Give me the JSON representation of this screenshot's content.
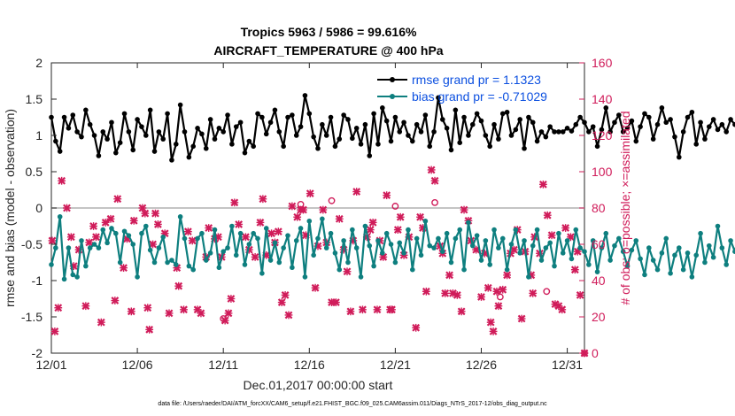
{
  "chart_data": {
    "type": "line",
    "title_line1": "Tropics 5963 / 5986 = 99.616%",
    "title_line2": "AIRCRAFT_TEMPERATURE @ 400 hPa",
    "xlabel": "Dec.01,2017 00:00:00 start",
    "ylabel_left": "rmse and bias (model - observation)",
    "ylabel_right": "# of obs: o=possible; ×=assimilated",
    "footer": "data file: /Users/raeder/DAI/ATM_forcXX/CAM6_setup/f.e21.FHIST_BGC.f09_025.CAM6assim.011/Diags_NTrS_2017-12/obs_diag_output.nc",
    "xlim": [
      0,
      31
    ],
    "ylim_left": [
      -2,
      2
    ],
    "ylim_right": [
      0,
      160
    ],
    "x_tick_labels": [
      "12/01",
      "12/06",
      "12/11",
      "12/16",
      "12/21",
      "12/26",
      "12/31"
    ],
    "x_tick_values": [
      0,
      5,
      10,
      15,
      20,
      25,
      30
    ],
    "y_left_ticks": [
      "2",
      "1.5",
      "1",
      "0.5",
      "0",
      "-0.5",
      "-1",
      "-1.5",
      "-2"
    ],
    "y_right_ticks": [
      "160",
      "140",
      "120",
      "100",
      "80",
      "60",
      "40",
      "20",
      "0"
    ],
    "colors": {
      "rmse": "#000000",
      "bias": "#0e7f7f",
      "obs": "#d01c5a",
      "legend_text": "#0b4fe0",
      "zero_line": "#b0b0b0"
    },
    "legend": [
      {
        "name": "rmse grand pr = 1.1323",
        "series": "rmse"
      },
      {
        "name": "bias grand pr = -0.71029",
        "series": "bias"
      }
    ],
    "series": [
      {
        "name": "rmse",
        "step": 0.25,
        "values": [
          1.25,
          0.92,
          0.78,
          1.25,
          1.1,
          1.28,
          1.05,
          0.98,
          1.35,
          1.15,
          1.0,
          0.72,
          1.05,
          0.95,
          1.18,
          0.76,
          0.9,
          1.3,
          1.05,
          0.8,
          1.22,
          1.12,
          1.0,
          1.35,
          0.78,
          1.05,
          0.95,
          1.3,
          0.66,
          0.88,
          1.42,
          1.05,
          0.7,
          0.85,
          1.1,
          1.02,
          0.82,
          1.22,
          0.95,
          1.1,
          1.05,
          1.28,
          0.88,
          1.12,
          1.18,
          0.76,
          0.92,
          0.85,
          1.3,
          1.25,
          1.02,
          1.18,
          1.35,
          1.05,
          0.85,
          1.25,
          1.28,
          1.0,
          1.12,
          1.55,
          1.3,
          0.98,
          0.82,
          1.15,
          1.0,
          1.25,
          0.85,
          0.95,
          1.28,
          1.22,
          0.96,
          1.1,
          0.88,
          1.15,
          0.72,
          1.3,
          0.88,
          1.38,
          1.2,
          0.92,
          1.25,
          1.05,
          1.18,
          1.0,
          0.92,
          1.15,
          1.05,
          1.28,
          0.85,
          1.05,
          1.52,
          1.22,
          1.1,
          0.8,
          1.35,
          0.9,
          1.25,
          1.0,
          1.15,
          1.3,
          1.2,
          1.0,
          0.85,
          1.15,
          0.95,
          1.3,
          1.32,
          1.0,
          1.08,
          1.22,
          0.82,
          1.25,
          1.18,
          0.92,
          1.05,
          0.98,
          1.12,
          1.05,
          1.05,
          1.05,
          1.1,
          1.06,
          1.15,
          1.25,
          1.18,
          1.05,
          1.12,
          0.85,
          1.08,
          1.38,
          1.05,
          1.18,
          1.28,
          1.05,
          1.1,
          1.2,
          0.92,
          1.12,
          1.3,
          1.25,
          0.95,
          1.15,
          1.38,
          1.18,
          1.22,
          0.98,
          0.7,
          1.05,
          1.25,
          1.32,
          0.88,
          1.18,
          0.95,
          1.12,
          1.22,
          1.08,
          1.15,
          1.05,
          1.22,
          1.15,
          1.05,
          1.28,
          1.2,
          1.12,
          1.3,
          0.98,
          1.18,
          0.92,
          0.82,
          1.25,
          1.05,
          1.35,
          1.05,
          1.22,
          0.92,
          1.38,
          0.85,
          1.45,
          1.25,
          1.18,
          1.05,
          1.15,
          1.22,
          1.25
        ]
      },
      {
        "name": "bias",
        "step": 0.25,
        "values": [
          -0.78,
          -0.55,
          -0.12,
          -0.98,
          -0.55,
          -0.92,
          -0.95,
          -0.45,
          -0.8,
          -0.55,
          -0.5,
          -0.55,
          -0.3,
          -0.48,
          -0.28,
          -0.35,
          -0.75,
          -0.32,
          -0.38,
          -0.5,
          -0.95,
          -0.35,
          -0.25,
          -0.58,
          -0.75,
          -0.55,
          -0.4,
          -0.75,
          -0.72,
          -0.78,
          -0.12,
          -0.42,
          -0.8,
          -0.85,
          -0.42,
          -0.35,
          -0.72,
          -0.62,
          -0.3,
          -0.82,
          -0.6,
          -0.55,
          -0.25,
          -0.65,
          -0.35,
          -0.78,
          -0.5,
          -0.35,
          -0.42,
          -0.9,
          -0.28,
          -0.72,
          -0.48,
          -0.75,
          -0.55,
          -0.38,
          -0.82,
          -0.45,
          -0.28,
          -0.95,
          -0.18,
          -0.65,
          -0.42,
          -0.15,
          -0.55,
          -0.35,
          -0.62,
          -0.85,
          -0.45,
          -0.75,
          -0.3,
          -0.55,
          -0.95,
          -0.25,
          -0.52,
          -0.8,
          -0.45,
          -0.62,
          -0.35,
          -0.5,
          -0.75,
          -0.48,
          -0.62,
          -0.3,
          -0.85,
          -0.42,
          -0.65,
          -0.18,
          -0.52,
          -0.55,
          -0.42,
          -0.6,
          -0.35,
          -0.75,
          -0.42,
          -0.3,
          -0.85,
          -0.2,
          -0.52,
          -0.38,
          -0.72,
          -0.45,
          -0.78,
          -0.3,
          -0.55,
          -0.42,
          -0.85,
          -0.5,
          -0.3,
          -0.62,
          -0.45,
          -0.95,
          -0.52,
          -0.3,
          -0.72,
          -0.55,
          -0.48,
          -0.8,
          -0.35,
          -0.62,
          -0.45,
          -0.7,
          -0.3,
          -0.55,
          -0.6,
          -0.78,
          -0.45,
          -0.88,
          -0.55,
          -0.35,
          -0.72,
          -0.52,
          -0.42,
          -0.6,
          -0.8,
          -0.58,
          -0.45,
          -0.7,
          -0.92,
          -0.55,
          -0.72,
          -0.85,
          -0.62,
          -0.42,
          -0.9,
          -0.65,
          -0.55,
          -0.85,
          -0.62,
          -0.95,
          -0.65,
          -0.35,
          -0.75,
          -0.52,
          -0.68,
          -0.25,
          -0.55,
          -0.78,
          -0.45,
          -0.6,
          -0.35,
          -0.85,
          -0.58,
          -0.42,
          -0.72,
          -0.55,
          -0.9,
          -0.45,
          -0.6,
          -0.35,
          -0.8,
          -0.5,
          -0.25,
          -0.62,
          -0.85,
          -0.38,
          -0.45,
          -0.95,
          -0.5,
          -0.3,
          -0.75,
          -0.55,
          -0.38,
          -0.62,
          -0.68,
          -0.75,
          -0.65,
          -0.72
        ]
      }
    ],
    "obs_assimilated": {
      "marker": "x",
      "points": [
        [
          0.05,
          62
        ],
        [
          0.2,
          12
        ],
        [
          0.4,
          25
        ],
        [
          0.6,
          95
        ],
        [
          0.9,
          80
        ],
        [
          1.15,
          64
        ],
        [
          1.3,
          48
        ],
        [
          1.6,
          57
        ],
        [
          2.0,
          26
        ],
        [
          2.2,
          61
        ],
        [
          2.45,
          70
        ],
        [
          2.6,
          64
        ],
        [
          2.9,
          17
        ],
        [
          3.15,
          72
        ],
        [
          3.45,
          74
        ],
        [
          3.7,
          29
        ],
        [
          3.85,
          85
        ],
        [
          4.2,
          47
        ],
        [
          4.4,
          63
        ],
        [
          4.65,
          23
        ],
        [
          4.8,
          73
        ],
        [
          5.3,
          80
        ],
        [
          5.45,
          77
        ],
        [
          5.6,
          25
        ],
        [
          5.7,
          13
        ],
        [
          5.9,
          60
        ],
        [
          6.05,
          77
        ],
        [
          6.2,
          71
        ],
        [
          6.6,
          66
        ],
        [
          6.85,
          22
        ],
        [
          7.3,
          47
        ],
        [
          7.4,
          37
        ],
        [
          7.7,
          24
        ],
        [
          7.95,
          67
        ],
        [
          8.2,
          62
        ],
        [
          8.5,
          24
        ],
        [
          8.7,
          22
        ],
        [
          9.0,
          53
        ],
        [
          9.15,
          69
        ],
        [
          9.5,
          63
        ],
        [
          9.7,
          64
        ],
        [
          9.9,
          53
        ],
        [
          10.1,
          18
        ],
        [
          10.3,
          22
        ],
        [
          10.45,
          30
        ],
        [
          10.65,
          83
        ],
        [
          10.9,
          71
        ],
        [
          11.3,
          64
        ],
        [
          11.5,
          57
        ],
        [
          11.85,
          53
        ],
        [
          12.15,
          72
        ],
        [
          12.3,
          85
        ],
        [
          12.5,
          54
        ],
        [
          12.8,
          66
        ],
        [
          13.0,
          61
        ],
        [
          13.2,
          67
        ],
        [
          13.4,
          28
        ],
        [
          13.6,
          32
        ],
        [
          13.8,
          21
        ],
        [
          14.0,
          81
        ],
        [
          14.3,
          75
        ],
        [
          14.5,
          79
        ],
        [
          14.65,
          79
        ],
        [
          14.8,
          65
        ],
        [
          15.05,
          88
        ],
        [
          15.35,
          36
        ],
        [
          15.5,
          59
        ],
        [
          15.8,
          79
        ],
        [
          16.0,
          61
        ],
        [
          16.3,
          28
        ],
        [
          16.55,
          28
        ],
        [
          16.75,
          74
        ],
        [
          17.0,
          57
        ],
        [
          17.2,
          45
        ],
        [
          17.4,
          23
        ],
        [
          17.55,
          62
        ],
        [
          17.75,
          89
        ],
        [
          18.1,
          24
        ],
        [
          18.35,
          64
        ],
        [
          18.55,
          68
        ],
        [
          18.7,
          72
        ],
        [
          18.95,
          24
        ],
        [
          19.1,
          62
        ],
        [
          19.3,
          53
        ],
        [
          19.5,
          87
        ],
        [
          19.7,
          24
        ],
        [
          19.8,
          24
        ],
        [
          20.15,
          68
        ],
        [
          20.3,
          75
        ],
        [
          20.5,
          54
        ],
        [
          20.8,
          64
        ],
        [
          21.2,
          14
        ],
        [
          21.45,
          75
        ],
        [
          21.6,
          69
        ],
        [
          21.8,
          34
        ],
        [
          22.1,
          101
        ],
        [
          22.3,
          95
        ],
        [
          22.6,
          59
        ],
        [
          22.75,
          55
        ],
        [
          22.9,
          33
        ],
        [
          23.15,
          43
        ],
        [
          23.35,
          33
        ],
        [
          23.6,
          32
        ],
        [
          23.85,
          23
        ],
        [
          24.0,
          79
        ],
        [
          24.25,
          73
        ],
        [
          24.4,
          62
        ],
        [
          24.7,
          57
        ],
        [
          25.0,
          31
        ],
        [
          25.2,
          55
        ],
        [
          25.4,
          36
        ],
        [
          25.55,
          17
        ],
        [
          25.7,
          12
        ],
        [
          25.9,
          34
        ],
        [
          26.0,
          26
        ],
        [
          26.25,
          35
        ],
        [
          26.5,
          43
        ],
        [
          26.7,
          55
        ],
        [
          26.9,
          57
        ],
        [
          27.1,
          68
        ],
        [
          27.35,
          19
        ],
        [
          27.55,
          56
        ],
        [
          27.9,
          43
        ],
        [
          28.0,
          33
        ],
        [
          28.1,
          64
        ],
        [
          28.4,
          55
        ],
        [
          28.6,
          93
        ],
        [
          28.85,
          76
        ],
        [
          29.1,
          65
        ],
        [
          29.3,
          27
        ],
        [
          29.5,
          26
        ],
        [
          29.7,
          24
        ],
        [
          29.9,
          69
        ],
        [
          30.2,
          64
        ],
        [
          30.45,
          46
        ],
        [
          30.6,
          56
        ],
        [
          30.75,
          32
        ],
        [
          31.0,
          0
        ]
      ]
    },
    "obs_possible": {
      "marker": "o",
      "points": [
        [
          10.0,
          19
        ],
        [
          14.5,
          82
        ],
        [
          16.3,
          84
        ],
        [
          20.0,
          81
        ],
        [
          22.3,
          83
        ],
        [
          26.1,
          31
        ],
        [
          28.8,
          34
        ],
        [
          31.0,
          0
        ]
      ]
    }
  }
}
